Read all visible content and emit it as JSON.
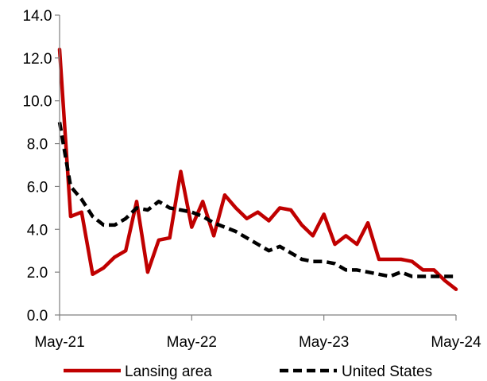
{
  "chart_data": {
    "type": "line",
    "title": "",
    "xlabel": "",
    "ylabel": "",
    "ylim": [
      0,
      14
    ],
    "yticks": [
      "0.0",
      "2.0",
      "4.0",
      "6.0",
      "8.0",
      "10.0",
      "12.0",
      "14.0"
    ],
    "xticks": [
      "May-21",
      "May-22",
      "May-23",
      "May-24"
    ],
    "x_range": [
      "2021-05",
      "2024-05"
    ],
    "grid": false,
    "legend_position": "bottom",
    "series": [
      {
        "name": "Lansing area",
        "color": "#c00000",
        "style": "solid",
        "points": [
          [
            "2021-05",
            12.4
          ],
          [
            "2021-06",
            4.6
          ],
          [
            "2021-07",
            4.8
          ],
          [
            "2021-08",
            1.9
          ],
          [
            "2021-09",
            2.2
          ],
          [
            "2021-10",
            2.7
          ],
          [
            "2021-11",
            3.0
          ],
          [
            "2021-12",
            5.3
          ],
          [
            "2022-01",
            2.0
          ],
          [
            "2022-02",
            3.5
          ],
          [
            "2022-03",
            3.6
          ],
          [
            "2022-04",
            6.7
          ],
          [
            "2022-05",
            4.1
          ],
          [
            "2022-06",
            5.3
          ],
          [
            "2022-07",
            3.7
          ],
          [
            "2022-08",
            5.6
          ],
          [
            "2022-09",
            5.0
          ],
          [
            "2022-10",
            4.5
          ],
          [
            "2022-11",
            4.8
          ],
          [
            "2022-12",
            4.4
          ],
          [
            "2023-01",
            5.0
          ],
          [
            "2023-02",
            4.9
          ],
          [
            "2023-03",
            4.2
          ],
          [
            "2023-04",
            3.7
          ],
          [
            "2023-05",
            4.7
          ],
          [
            "2023-06",
            3.3
          ],
          [
            "2023-07",
            3.7
          ],
          [
            "2023-08",
            3.3
          ],
          [
            "2023-09",
            4.3
          ],
          [
            "2023-10",
            2.6
          ],
          [
            "2023-11",
            2.6
          ],
          [
            "2023-12",
            2.6
          ],
          [
            "2024-01",
            2.5
          ],
          [
            "2024-02",
            2.1
          ],
          [
            "2024-03",
            2.1
          ],
          [
            "2024-04",
            1.6
          ],
          [
            "2024-05",
            1.2
          ]
        ]
      },
      {
        "name": "United States",
        "color": "#000000",
        "style": "dashed",
        "points": [
          [
            "2021-05",
            9.0
          ],
          [
            "2021-06",
            6.0
          ],
          [
            "2021-07",
            5.4
          ],
          [
            "2021-08",
            4.6
          ],
          [
            "2021-09",
            4.2
          ],
          [
            "2021-10",
            4.2
          ],
          [
            "2021-11",
            4.5
          ],
          [
            "2021-12",
            5.0
          ],
          [
            "2022-01",
            4.9
          ],
          [
            "2022-02",
            5.3
          ],
          [
            "2022-03",
            5.0
          ],
          [
            "2022-04",
            4.9
          ],
          [
            "2022-05",
            4.8
          ],
          [
            "2022-06",
            4.6
          ],
          [
            "2022-07",
            4.3
          ],
          [
            "2022-08",
            4.1
          ],
          [
            "2022-09",
            3.9
          ],
          [
            "2022-10",
            3.6
          ],
          [
            "2022-11",
            3.3
          ],
          [
            "2022-12",
            3.0
          ],
          [
            "2023-01",
            3.2
          ],
          [
            "2023-02",
            2.9
          ],
          [
            "2023-03",
            2.6
          ],
          [
            "2023-04",
            2.5
          ],
          [
            "2023-05",
            2.5
          ],
          [
            "2023-06",
            2.4
          ],
          [
            "2023-07",
            2.1
          ],
          [
            "2023-08",
            2.1
          ],
          [
            "2023-09",
            2.0
          ],
          [
            "2023-10",
            1.9
          ],
          [
            "2023-11",
            1.8
          ],
          [
            "2023-12",
            2.0
          ],
          [
            "2024-01",
            1.8
          ],
          [
            "2024-02",
            1.8
          ],
          [
            "2024-03",
            1.8
          ],
          [
            "2024-04",
            1.8
          ],
          [
            "2024-05",
            1.8
          ]
        ]
      }
    ]
  }
}
